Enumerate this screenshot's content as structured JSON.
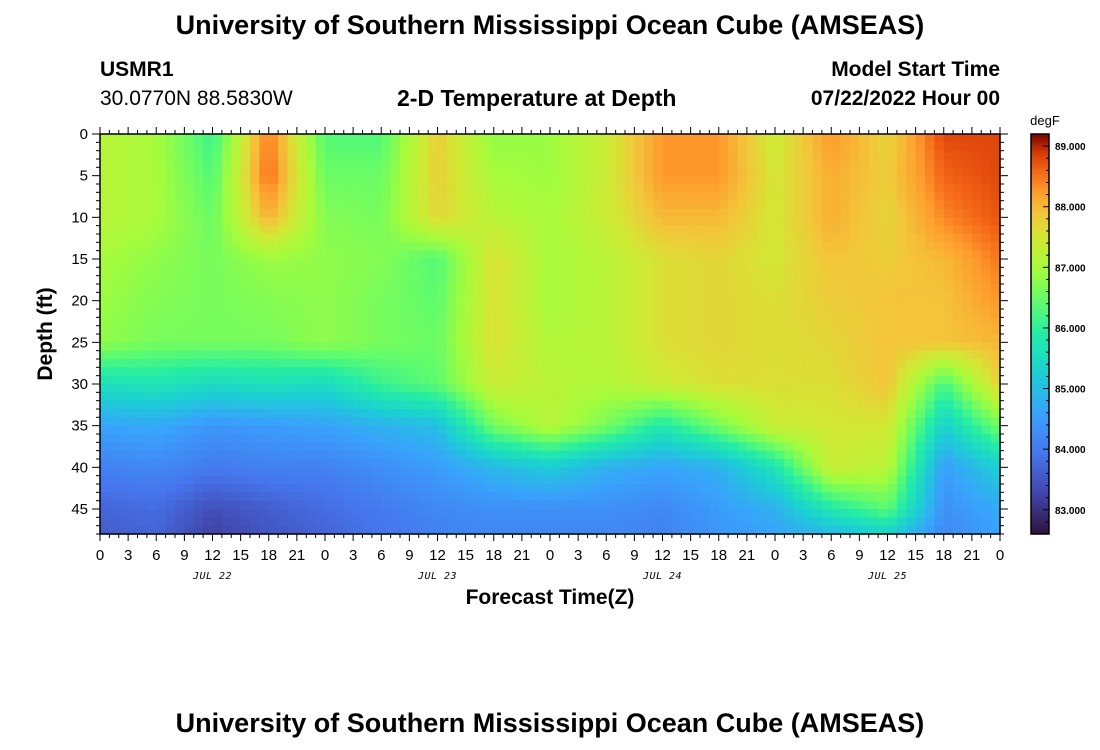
{
  "page": {
    "title": "University of Southern Mississippi Ocean Cube (AMSEAS)",
    "title_repeat": "University of Southern Mississippi Ocean Cube (AMSEAS)",
    "station": "USMR1",
    "location": "30.0770N  88.5830W",
    "plot_title": "2-D Temperature at Depth",
    "model_start_label": "Model Start Time",
    "model_start_value": "07/22/2022 Hour 00"
  },
  "chart_data": {
    "type": "heatmap",
    "title": "2-D Temperature at Depth",
    "xlabel": "Forecast Time(Z)",
    "ylabel": "Depth (ft)",
    "x_unit": "hours since 07/22/2022 00Z",
    "xlim": [
      0,
      96
    ],
    "ylim": [
      0,
      48
    ],
    "x_ticks": [
      0,
      3,
      6,
      9,
      12,
      15,
      18,
      21,
      24,
      27,
      30,
      33,
      36,
      39,
      42,
      45,
      48,
      51,
      54,
      57,
      60,
      63,
      66,
      69,
      72,
      75,
      78,
      81,
      84,
      87,
      90,
      93,
      96
    ],
    "x_tick_labels": [
      "0",
      "3",
      "6",
      "9",
      "12",
      "15",
      "18",
      "21",
      "0",
      "3",
      "6",
      "9",
      "12",
      "15",
      "18",
      "21",
      "0",
      "3",
      "6",
      "9",
      "12",
      "15",
      "18",
      "21",
      "0",
      "3",
      "6",
      "9",
      "12",
      "15",
      "18",
      "21",
      "0"
    ],
    "date_labels": [
      {
        "hour": 12,
        "text": "JUL 22"
      },
      {
        "hour": 36,
        "text": "JUL 23"
      },
      {
        "hour": 60,
        "text": "JUL 24"
      },
      {
        "hour": 84,
        "text": "JUL 25"
      }
    ],
    "y_ticks": [
      0,
      5,
      10,
      15,
      20,
      25,
      30,
      35,
      40,
      45
    ],
    "colorbar": {
      "unit": "degF",
      "min": 82.6,
      "max": 89.2,
      "ticks": [
        83,
        84,
        85,
        86,
        87,
        88,
        89
      ],
      "tick_labels": [
        "83.000",
        "84.000",
        "85.000",
        "86.000",
        "87.000",
        "88.000",
        "89.000"
      ]
    },
    "grid_hours": [
      0,
      6,
      12,
      18,
      24,
      30,
      36,
      42,
      48,
      54,
      60,
      66,
      72,
      78,
      84,
      90,
      96
    ],
    "grid_depths_ft": [
      0,
      5,
      10,
      15,
      20,
      25,
      30,
      35,
      40,
      45,
      48
    ],
    "temperature_degF": [
      [
        87.2,
        87.0,
        86.1,
        88.5,
        86.3,
        86.3,
        87.8,
        86.8,
        86.9,
        87.4,
        88.3,
        88.3,
        87.4,
        88.3,
        87.7,
        88.8,
        88.8
      ],
      [
        87.2,
        87.0,
        86.3,
        88.6,
        86.5,
        86.5,
        87.8,
        87.0,
        86.9,
        87.4,
        88.3,
        88.3,
        87.5,
        88.1,
        87.8,
        88.6,
        88.8
      ],
      [
        87.2,
        87.0,
        86.5,
        88.1,
        86.7,
        86.6,
        87.7,
        87.2,
        87.0,
        87.4,
        88.0,
        88.0,
        87.5,
        88.1,
        87.7,
        88.4,
        88.7
      ],
      [
        87.0,
        86.8,
        86.6,
        86.9,
        86.8,
        86.7,
        86.3,
        87.6,
        87.0,
        87.2,
        87.6,
        87.7,
        87.5,
        87.9,
        87.8,
        88.0,
        88.5
      ],
      [
        86.9,
        86.7,
        86.6,
        86.7,
        86.8,
        86.6,
        86.4,
        87.6,
        87.0,
        87.2,
        87.6,
        87.7,
        87.6,
        87.8,
        87.9,
        87.9,
        88.3
      ],
      [
        86.8,
        86.6,
        86.6,
        86.6,
        86.8,
        86.6,
        86.5,
        87.6,
        87.1,
        87.2,
        87.6,
        87.7,
        87.6,
        87.7,
        87.9,
        87.9,
        88.0
      ],
      [
        85.6,
        85.7,
        85.5,
        85.6,
        85.5,
        86.1,
        86.4,
        87.4,
        87.2,
        87.1,
        87.4,
        87.6,
        87.6,
        87.6,
        87.9,
        86.2,
        87.8
      ],
      [
        84.6,
        84.7,
        84.4,
        84.5,
        84.6,
        84.8,
        85.0,
        86.6,
        87.2,
        86.6,
        85.8,
        86.6,
        87.4,
        87.5,
        87.5,
        85.3,
        86.6
      ],
      [
        84.1,
        84.2,
        84.0,
        84.1,
        84.1,
        84.3,
        84.5,
        84.9,
        85.2,
        84.8,
        84.6,
        84.8,
        85.7,
        87.4,
        87.2,
        84.5,
        85.3
      ],
      [
        83.7,
        83.8,
        83.4,
        83.6,
        83.8,
        84.0,
        84.2,
        84.3,
        84.3,
        84.3,
        84.2,
        84.5,
        84.8,
        85.8,
        86.4,
        84.3,
        84.7
      ],
      [
        83.6,
        83.7,
        83.2,
        83.5,
        83.7,
        83.9,
        84.1,
        84.2,
        84.2,
        84.2,
        84.1,
        84.4,
        84.6,
        84.9,
        85.3,
        84.2,
        84.6
      ]
    ]
  }
}
